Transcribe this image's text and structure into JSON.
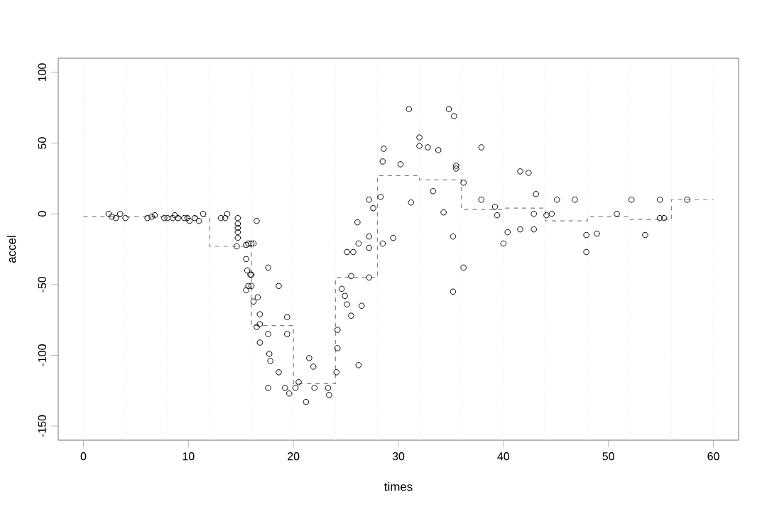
{
  "chart_data": {
    "type": "scatter",
    "xlabel": "times",
    "ylabel": "accel",
    "xlim": [
      -2.4,
      62.4
    ],
    "ylim": [
      -160,
      110
    ],
    "xticks": [
      0,
      10,
      20,
      30,
      40,
      50,
      60
    ],
    "yticks": [
      -150,
      -100,
      -50,
      0,
      50,
      100
    ],
    "grid": false,
    "marker": "circle",
    "ref_lines": [
      {
        "axis": "x",
        "value": 0,
        "color": "#dddddd",
        "line_style": "dotted"
      },
      {
        "axis": "x",
        "value": 4,
        "color": "#dddddd",
        "line_style": "dotted"
      },
      {
        "axis": "x",
        "value": 8,
        "color": "#dddddd",
        "line_style": "dotted"
      },
      {
        "axis": "x",
        "value": 12,
        "color": "#dddddd",
        "line_style": "dotted"
      },
      {
        "axis": "x",
        "value": 16,
        "color": "#dddddd",
        "line_style": "dotted"
      },
      {
        "axis": "x",
        "value": 20,
        "color": "#dddddd",
        "line_style": "dotted"
      },
      {
        "axis": "x",
        "value": 24,
        "color": "#dddddd",
        "line_style": "dotted"
      },
      {
        "axis": "x",
        "value": 28,
        "color": "#dddddd",
        "line_style": "dotted"
      },
      {
        "axis": "x",
        "value": 32,
        "color": "#dddddd",
        "line_style": "dotted"
      },
      {
        "axis": "x",
        "value": 36,
        "color": "#dddddd",
        "line_style": "dotted"
      },
      {
        "axis": "x",
        "value": 40,
        "color": "#dddddd",
        "line_style": "dotted"
      },
      {
        "axis": "x",
        "value": 44,
        "color": "#dddddd",
        "line_style": "dotted"
      },
      {
        "axis": "x",
        "value": 48,
        "color": "#dddddd",
        "line_style": "dotted"
      },
      {
        "axis": "x",
        "value": 52,
        "color": "#dddddd",
        "line_style": "dotted"
      },
      {
        "axis": "x",
        "value": 56,
        "color": "#dddddd",
        "line_style": "dotted"
      },
      {
        "axis": "x",
        "value": 60,
        "color": "#dddddd",
        "line_style": "dotted"
      }
    ],
    "series": [
      {
        "color": "#000000",
        "x": [
          2.4,
          2.7,
          3.1,
          3.5,
          4.0,
          6.1,
          6.5,
          6.8,
          7.7,
          8.0,
          8.5,
          8.7,
          9.0,
          9.6,
          9.9,
          10.1,
          10.6,
          11.0,
          11.4,
          13.1,
          13.5,
          13.7,
          14.7,
          14.7,
          14.7,
          14.7,
          14.7,
          14.6,
          15.5,
          15.7,
          16.0,
          16.2,
          16.5,
          15.5,
          15.6,
          15.9,
          16.0,
          15.7,
          15.5,
          16.2,
          16.0,
          16.6,
          16.8,
          16.5,
          16.8,
          16.8,
          17.6,
          18.6,
          17.6,
          17.7,
          17.8,
          18.6,
          17.6,
          19.4,
          19.4,
          19.2,
          19.6,
          20.2,
          20.5,
          21.5,
          21.9,
          21.2,
          22.0,
          23.3,
          23.4,
          24.1,
          24.2,
          24.2,
          24.6,
          24.9,
          25.1,
          25.5,
          26.5,
          26.2,
          25.1,
          25.5,
          25.7,
          26.2,
          26.1,
          27.2,
          27.2,
          27.2,
          27.2,
          27.6,
          28.3,
          28.5,
          29.5,
          28.5,
          28.6,
          30.2,
          31.0,
          31.2,
          32.0,
          32.0,
          32.8,
          33.8,
          33.3,
          34.3,
          34.8,
          35.3,
          35.5,
          35.5,
          36.2,
          35.2,
          36.2,
          35.2,
          37.9,
          37.9,
          39.2,
          39.4,
          40.0,
          40.4,
          41.6,
          42.4,
          41.6,
          42.9,
          43.1,
          42.9,
          44.1,
          44.6,
          45.1,
          46.8,
          47.9,
          47.9,
          48.9,
          50.8,
          52.2,
          53.5,
          54.9,
          54.9,
          55.3,
          57.5
        ],
        "values": [
          0,
          -2,
          -3,
          0,
          -3,
          -3,
          -2,
          -1,
          -3,
          -3,
          -3,
          -1,
          -3,
          -3,
          -3,
          -5,
          -3,
          -5,
          0,
          -3,
          -3,
          0,
          -3,
          -7,
          -10,
          -13,
          -17,
          -23,
          -22,
          -21,
          -21,
          -21,
          -5,
          -32,
          -40,
          -43,
          -51,
          -51,
          -54,
          -62,
          -43,
          -59,
          -71,
          -80,
          -78,
          -91,
          -38,
          -51,
          -85,
          -99,
          -104,
          -112,
          -123,
          -73,
          -85,
          -123,
          -127,
          -123,
          -119,
          -102,
          -108,
          -133,
          -123,
          -123,
          -128,
          -112,
          -95,
          -82,
          -53,
          -58,
          -64,
          -72,
          -65,
          -107,
          -27,
          -44,
          -27,
          -21,
          -6,
          -16,
          -24,
          -45,
          10,
          4,
          12,
          -21,
          -17,
          37,
          46,
          35,
          74,
          8,
          54,
          48,
          47,
          45,
          16,
          1,
          74,
          69,
          34,
          32,
          22,
          -16,
          -38,
          -55,
          47,
          10,
          5,
          -1,
          -21,
          -13,
          30,
          29,
          -11,
          -11,
          14,
          0,
          -1,
          0,
          10,
          10,
          -15,
          -27,
          -14,
          0,
          10,
          -15,
          10,
          -3,
          -3,
          10
        ]
      },
      {
        "type": "step",
        "color": "#808080",
        "line_style": "dashed",
        "marker": "none",
        "x": [
          0,
          4,
          8,
          12,
          16,
          20,
          24,
          28,
          32,
          36,
          40,
          44,
          48,
          52,
          56,
          60
        ],
        "values": [
          -2,
          -2,
          -2,
          -23,
          -79,
          -120,
          -45,
          27,
          24,
          3,
          4,
          -5,
          -2,
          -4,
          10,
          10
        ]
      }
    ]
  }
}
